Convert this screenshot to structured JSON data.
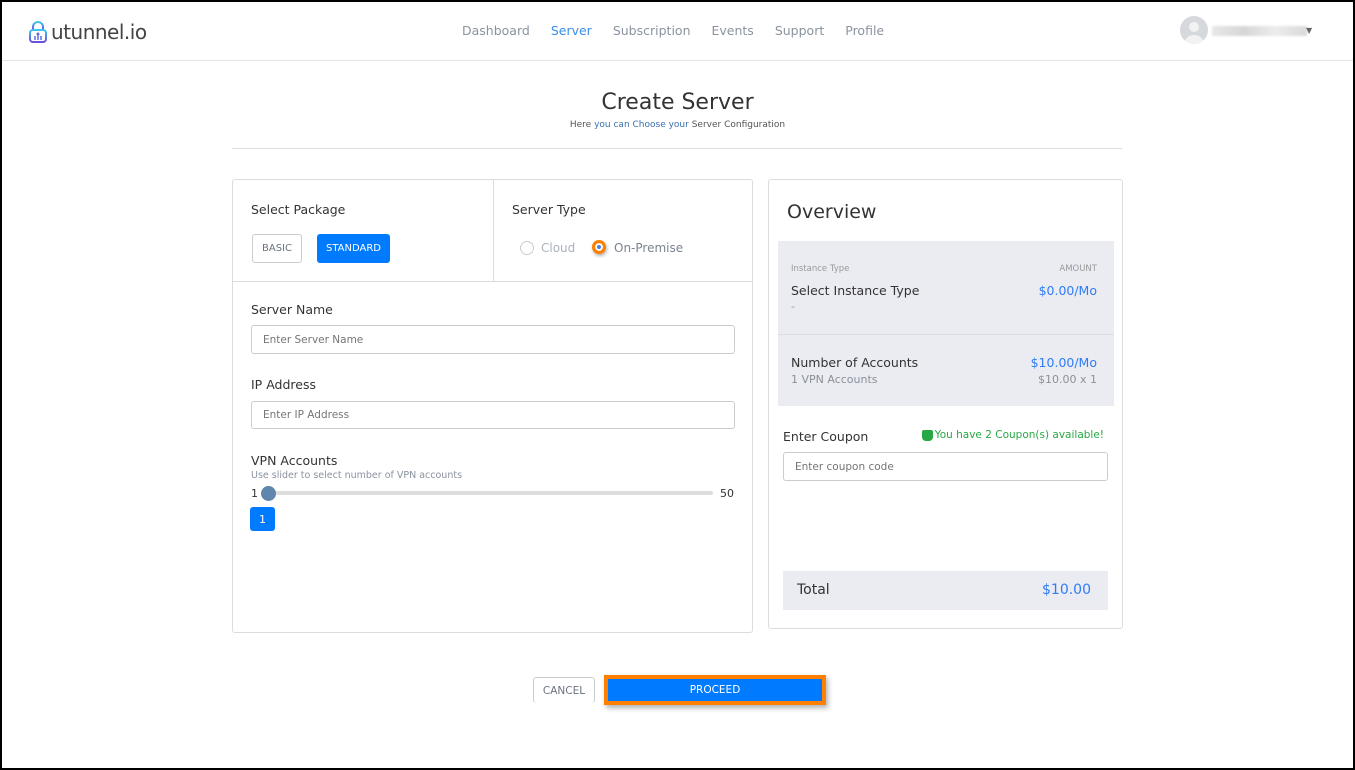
{
  "brand": {
    "name": "utunnel.io"
  },
  "nav": [
    {
      "label": "Dashboard"
    },
    {
      "label": "Server",
      "active": true
    },
    {
      "label": "Subscription"
    },
    {
      "label": "Events"
    },
    {
      "label": "Support"
    },
    {
      "label": "Profile"
    }
  ],
  "page": {
    "title": "Create Server",
    "subtitle_pre": "Here ",
    "subtitle_mid": "you can Choose your",
    "subtitle_post": " Server Configuration"
  },
  "package": {
    "label": "Select Package",
    "options": [
      "BASIC",
      "STANDARD"
    ],
    "selected": "STANDARD"
  },
  "server_type": {
    "label": "Server Type",
    "options": [
      "Cloud",
      "On-Premise"
    ],
    "selected": "On-Premise"
  },
  "server_name": {
    "label": "Server Name",
    "placeholder": "Enter Server Name"
  },
  "ip": {
    "label": "IP Address",
    "placeholder": "Enter IP Address"
  },
  "vpn": {
    "label": "VPN Accounts",
    "hint": "Use slider to select number of VPN accounts",
    "min": "1",
    "max": "50",
    "value": "1"
  },
  "overview": {
    "title": "Overview",
    "col1": "Instance Type",
    "col2": "AMOUNT",
    "instance": "Select Instance Type",
    "instance_sub": "-",
    "instance_amount": "$0.00/Mo",
    "accounts": "Number of Accounts",
    "accounts_sub": "1 VPN Accounts",
    "accounts_amount": "$10.00/Mo",
    "accounts_calc": "$10.00 x 1",
    "coupon_label": "Enter Coupon",
    "coupon_avail": "You have 2 Coupon(s) available!",
    "coupon_placeholder": "Enter coupon code",
    "total_label": "Total",
    "total": "$10.00"
  },
  "actions": {
    "cancel": "CANCEL",
    "proceed": "PROCEED"
  },
  "colors": {
    "accent": "#007bff",
    "highlight": "#ff7f00",
    "success": "#28a745"
  }
}
